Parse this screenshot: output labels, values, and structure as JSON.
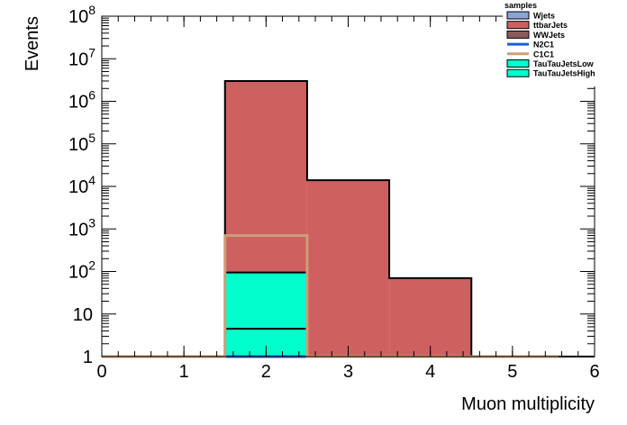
{
  "chart_data": {
    "type": "bar",
    "subtype": "stacked-histogram",
    "xlabel": "Muon multiplicity",
    "ylabel": "Events",
    "xlim": [
      0,
      6
    ],
    "ylim": [
      1,
      100000000
    ],
    "yscale": "log",
    "x_ticks": [
      0,
      1,
      2,
      3,
      4,
      5,
      6
    ],
    "y_ticks": [
      {
        "value": 1,
        "label": "1"
      },
      {
        "value": 10,
        "label": "10"
      },
      {
        "value": 100,
        "base": "10",
        "exp": "2"
      },
      {
        "value": 1000,
        "base": "10",
        "exp": "3"
      },
      {
        "value": 10000,
        "base": "10",
        "exp": "4"
      },
      {
        "value": 100000,
        "base": "10",
        "exp": "5"
      },
      {
        "value": 1000000,
        "base": "10",
        "exp": "6"
      },
      {
        "value": 10000000,
        "base": "10",
        "exp": "7"
      },
      {
        "value": 100000000,
        "base": "10",
        "exp": "8"
      }
    ],
    "bin_edges": [
      0.5,
      1.5,
      2.5,
      3.5,
      4.5
    ],
    "stack_order_bottom_to_top": [
      "TauTauJetsHigh",
      "TauTauJetsLow",
      "ttbarJets"
    ],
    "series": [
      {
        "name": "Wjets",
        "kind": "fill",
        "color": "#8aa4d6",
        "values": [
          0,
          0,
          0,
          0
        ]
      },
      {
        "name": "ttbarJets",
        "kind": "fill",
        "color": "#cf6060",
        "values": [
          0,
          3000000,
          14000,
          70
        ]
      },
      {
        "name": "WWJets",
        "kind": "fill",
        "color": "#8c5a5a",
        "values": [
          0,
          0,
          0,
          0
        ]
      },
      {
        "name": "N2C1",
        "kind": "line",
        "color": "#1560e0",
        "values": [
          0,
          1,
          0,
          0
        ]
      },
      {
        "name": "C1C1",
        "kind": "line",
        "color": "#c8a07a",
        "values": [
          0,
          700,
          0,
          0
        ]
      },
      {
        "name": "TauTauJetsLow",
        "kind": "fill",
        "color": "#00ffcc",
        "values": [
          0,
          90,
          0,
          0
        ]
      },
      {
        "name": "TauTauJetsHigh",
        "kind": "fill",
        "color": "#00ffcc",
        "values": [
          0,
          4.5,
          0,
          0
        ]
      }
    ],
    "legend": {
      "title": "samples",
      "placement": "top-right",
      "entries": [
        {
          "name": "Wjets",
          "style": "box",
          "color": "#8aa4d6"
        },
        {
          "name": "ttbarJets",
          "style": "box",
          "color": "#cf6060"
        },
        {
          "name": "WWJets",
          "style": "box",
          "color": "#8c5a5a"
        },
        {
          "name": "N2C1",
          "style": "line",
          "color": "#1560e0"
        },
        {
          "name": "C1C1",
          "style": "line",
          "color": "#c8a07a"
        },
        {
          "name": "TauTauJetsLow",
          "style": "box",
          "color": "#00ffcc"
        },
        {
          "name": "TauTauJetsHigh",
          "style": "box",
          "color": "#00ffcc"
        }
      ]
    },
    "grid": false
  }
}
